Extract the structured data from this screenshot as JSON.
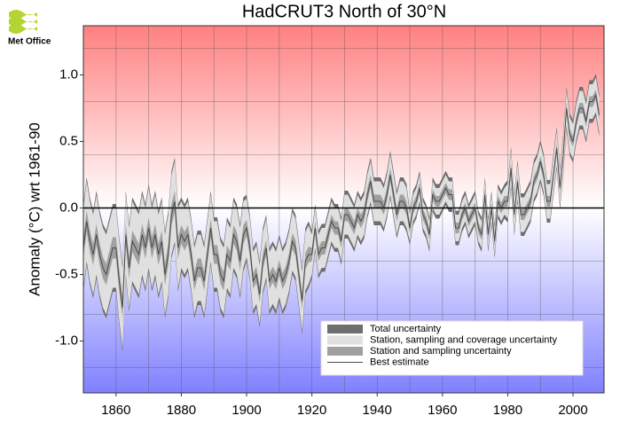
{
  "logo": "Met Office",
  "chart_data": {
    "type": "line",
    "title": "HadCRUT3 North of 30°N",
    "ylabel": "Anomaly (°C) wrt 1961-90",
    "xlim": [
      1850,
      2009.5
    ],
    "ylim": [
      -1.39,
      1.37
    ],
    "xticks": [
      1860,
      1880,
      1900,
      1920,
      1940,
      1960,
      1980,
      2000
    ],
    "xgrid": [
      1860,
      1870,
      1880,
      1890,
      1900,
      1910,
      1920,
      1930,
      1940,
      1950,
      1960,
      1970,
      1980,
      1990,
      2000
    ],
    "yticks": [
      {
        "value": 1.0,
        "label": "1.0"
      },
      {
        "value": 0.5,
        "label": "0.5"
      },
      {
        "value": 0.0,
        "label": "0.0"
      },
      {
        "value": -0.5,
        "label": "-0.5"
      },
      {
        "value": -1.0,
        "label": "-1.0"
      }
    ],
    "ygrid": [
      -1.2,
      -0.8,
      -0.4,
      0.4,
      0.8,
      1.2
    ],
    "grid": true,
    "zero_line": true,
    "background": {
      "top": "#ff8080",
      "middle": "#ffffff",
      "bottom": "#8080ff"
    },
    "legend": "lower right",
    "x": [
      1850,
      1851,
      1852,
      1853,
      1854,
      1855,
      1856,
      1857,
      1858,
      1859,
      1860,
      1861,
      1862,
      1863,
      1864,
      1865,
      1866,
      1867,
      1868,
      1869,
      1870,
      1871,
      1872,
      1873,
      1874,
      1875,
      1876,
      1877,
      1878,
      1879,
      1880,
      1881,
      1882,
      1883,
      1884,
      1885,
      1886,
      1887,
      1888,
      1889,
      1890,
      1891,
      1892,
      1893,
      1894,
      1895,
      1896,
      1897,
      1898,
      1899,
      1900,
      1901,
      1902,
      1903,
      1904,
      1905,
      1906,
      1907,
      1908,
      1909,
      1910,
      1911,
      1912,
      1913,
      1914,
      1915,
      1916,
      1917,
      1918,
      1919,
      1920,
      1921,
      1922,
      1923,
      1924,
      1925,
      1926,
      1927,
      1928,
      1929,
      1930,
      1931,
      1932,
      1933,
      1934,
      1935,
      1936,
      1937,
      1938,
      1939,
      1940,
      1941,
      1942,
      1943,
      1944,
      1945,
      1946,
      1947,
      1948,
      1949,
      1950,
      1951,
      1952,
      1953,
      1954,
      1955,
      1956,
      1957,
      1958,
      1959,
      1960,
      1961,
      1962,
      1963,
      1964,
      1965,
      1966,
      1967,
      1968,
      1969,
      1970,
      1971,
      1972,
      1973,
      1974,
      1975,
      1976,
      1977,
      1978,
      1979,
      1980,
      1981,
      1982,
      1983,
      1984,
      1985,
      1986,
      1987,
      1988,
      1989,
      1990,
      1991,
      1992,
      1993,
      1994,
      1995,
      1996,
      1997,
      1998,
      1999,
      2000,
      2001,
      2002,
      2003,
      2004,
      2005,
      2006,
      2007,
      2008
    ],
    "bands": [
      {
        "name": "Total uncertainty",
        "color": "#6e6e6e",
        "halfwidth": [
          0.33,
          0.33,
          0.33,
          0.33,
          0.33,
          0.33,
          0.33,
          0.33,
          0.33,
          0.33,
          0.33,
          0.33,
          0.33,
          0.33,
          0.33,
          0.33,
          0.33,
          0.33,
          0.33,
          0.33,
          0.33,
          0.33,
          0.33,
          0.33,
          0.33,
          0.33,
          0.33,
          0.33,
          0.33,
          0.33,
          0.28,
          0.28,
          0.28,
          0.28,
          0.28,
          0.28,
          0.28,
          0.28,
          0.28,
          0.28,
          0.28,
          0.28,
          0.28,
          0.28,
          0.28,
          0.28,
          0.28,
          0.28,
          0.28,
          0.28,
          0.25,
          0.25,
          0.25,
          0.25,
          0.25,
          0.25,
          0.25,
          0.25,
          0.25,
          0.25,
          0.25,
          0.25,
          0.25,
          0.25,
          0.25,
          0.25,
          0.25,
          0.25,
          0.25,
          0.25,
          0.18,
          0.18,
          0.18,
          0.18,
          0.18,
          0.18,
          0.18,
          0.18,
          0.18,
          0.18,
          0.18,
          0.18,
          0.18,
          0.18,
          0.18,
          0.18,
          0.18,
          0.18,
          0.18,
          0.18,
          0.18,
          0.18,
          0.18,
          0.18,
          0.18,
          0.18,
          0.18,
          0.18,
          0.18,
          0.18,
          0.13,
          0.13,
          0.13,
          0.13,
          0.13,
          0.13,
          0.13,
          0.13,
          0.13,
          0.13,
          0.13,
          0.13,
          0.13,
          0.13,
          0.13,
          0.13,
          0.13,
          0.13,
          0.13,
          0.13,
          0.13,
          0.13,
          0.13,
          0.13,
          0.13,
          0.13,
          0.13,
          0.13,
          0.13,
          0.13,
          0.16,
          0.16,
          0.16,
          0.16,
          0.16,
          0.16,
          0.16,
          0.16,
          0.16,
          0.16,
          0.16,
          0.16,
          0.16,
          0.16,
          0.16,
          0.16,
          0.16,
          0.16,
          0.16,
          0.16,
          0.16,
          0.16,
          0.16,
          0.16,
          0.16,
          0.16,
          0.16,
          0.16,
          0.16
        ]
      },
      {
        "name": "Station, sampling and coverage uncertainty",
        "color": "#e0e0e0",
        "halfwidth": [
          0.3,
          0.3,
          0.3,
          0.3,
          0.3,
          0.3,
          0.3,
          0.3,
          0.3,
          0.3,
          0.3,
          0.3,
          0.3,
          0.3,
          0.3,
          0.3,
          0.3,
          0.3,
          0.3,
          0.3,
          0.3,
          0.3,
          0.3,
          0.3,
          0.3,
          0.3,
          0.3,
          0.3,
          0.3,
          0.3,
          0.25,
          0.25,
          0.25,
          0.25,
          0.25,
          0.25,
          0.25,
          0.25,
          0.25,
          0.25,
          0.25,
          0.25,
          0.25,
          0.25,
          0.25,
          0.25,
          0.25,
          0.25,
          0.25,
          0.25,
          0.22,
          0.22,
          0.22,
          0.22,
          0.22,
          0.22,
          0.22,
          0.22,
          0.22,
          0.22,
          0.22,
          0.22,
          0.22,
          0.22,
          0.22,
          0.22,
          0.22,
          0.22,
          0.22,
          0.22,
          0.15,
          0.15,
          0.15,
          0.15,
          0.15,
          0.15,
          0.15,
          0.15,
          0.15,
          0.15,
          0.15,
          0.15,
          0.15,
          0.15,
          0.15,
          0.15,
          0.15,
          0.15,
          0.15,
          0.15,
          0.15,
          0.15,
          0.15,
          0.15,
          0.15,
          0.15,
          0.15,
          0.15,
          0.15,
          0.15,
          0.1,
          0.1,
          0.1,
          0.1,
          0.1,
          0.1,
          0.1,
          0.1,
          0.1,
          0.1,
          0.1,
          0.1,
          0.1,
          0.1,
          0.1,
          0.1,
          0.1,
          0.1,
          0.1,
          0.1,
          0.1,
          0.1,
          0.1,
          0.1,
          0.1,
          0.1,
          0.1,
          0.1,
          0.1,
          0.1,
          0.13,
          0.13,
          0.13,
          0.13,
          0.13,
          0.13,
          0.13,
          0.13,
          0.13,
          0.13,
          0.13,
          0.13,
          0.13,
          0.13,
          0.13,
          0.13,
          0.13,
          0.13,
          0.13,
          0.13,
          0.13,
          0.13,
          0.13,
          0.13,
          0.13,
          0.13,
          0.13,
          0.13,
          0.13
        ]
      },
      {
        "name": "Station and sampling uncertainty",
        "color": "#a0a0a0",
        "halfwidth": [
          0.08,
          0.08,
          0.08,
          0.08,
          0.08,
          0.08,
          0.08,
          0.08,
          0.08,
          0.08,
          0.08,
          0.08,
          0.08,
          0.08,
          0.08,
          0.08,
          0.08,
          0.08,
          0.08,
          0.08,
          0.08,
          0.08,
          0.08,
          0.08,
          0.08,
          0.08,
          0.08,
          0.08,
          0.08,
          0.08,
          0.07,
          0.07,
          0.07,
          0.07,
          0.07,
          0.07,
          0.07,
          0.07,
          0.07,
          0.07,
          0.07,
          0.07,
          0.07,
          0.07,
          0.07,
          0.07,
          0.07,
          0.07,
          0.07,
          0.07,
          0.06,
          0.06,
          0.06,
          0.06,
          0.06,
          0.06,
          0.06,
          0.06,
          0.06,
          0.06,
          0.06,
          0.06,
          0.06,
          0.06,
          0.06,
          0.06,
          0.06,
          0.06,
          0.06,
          0.06,
          0.05,
          0.05,
          0.05,
          0.05,
          0.05,
          0.05,
          0.05,
          0.05,
          0.05,
          0.05,
          0.05,
          0.05,
          0.05,
          0.05,
          0.05,
          0.05,
          0.05,
          0.05,
          0.05,
          0.05,
          0.05,
          0.05,
          0.05,
          0.05,
          0.05,
          0.05,
          0.05,
          0.05,
          0.05,
          0.05,
          0.04,
          0.04,
          0.04,
          0.04,
          0.04,
          0.04,
          0.04,
          0.04,
          0.04,
          0.04,
          0.04,
          0.04,
          0.04,
          0.04,
          0.04,
          0.04,
          0.04,
          0.04,
          0.04,
          0.04,
          0.04,
          0.04,
          0.04,
          0.04,
          0.04,
          0.04,
          0.04,
          0.04,
          0.04,
          0.04,
          0.04,
          0.04,
          0.04,
          0.04,
          0.04,
          0.04,
          0.04,
          0.04,
          0.04,
          0.04,
          0.04,
          0.04,
          0.04,
          0.04,
          0.04,
          0.04,
          0.04,
          0.04,
          0.04,
          0.04,
          0.04,
          0.04,
          0.04,
          0.04,
          0.04,
          0.04,
          0.04,
          0.04,
          0.04
        ]
      }
    ],
    "series": [
      {
        "name": "Best estimate",
        "color": "#4a4a4a",
        "values": [
          -0.3,
          -0.1,
          -0.25,
          -0.35,
          -0.2,
          -0.35,
          -0.45,
          -0.5,
          -0.4,
          -0.3,
          -0.3,
          -0.55,
          -0.75,
          -0.2,
          -0.45,
          -0.25,
          -0.3,
          -0.35,
          -0.2,
          -0.3,
          -0.15,
          -0.3,
          -0.2,
          -0.35,
          -0.25,
          -0.5,
          -0.35,
          -0.05,
          0.05,
          -0.3,
          -0.2,
          -0.25,
          -0.2,
          -0.35,
          -0.55,
          -0.45,
          -0.45,
          -0.55,
          -0.35,
          -0.15,
          -0.35,
          -0.35,
          -0.5,
          -0.55,
          -0.35,
          -0.4,
          -0.2,
          -0.25,
          -0.4,
          -0.2,
          -0.15,
          -0.3,
          -0.55,
          -0.5,
          -0.65,
          -0.4,
          -0.3,
          -0.55,
          -0.5,
          -0.55,
          -0.45,
          -0.55,
          -0.5,
          -0.4,
          -0.25,
          -0.3,
          -0.5,
          -0.7,
          -0.4,
          -0.35,
          -0.35,
          -0.15,
          -0.35,
          -0.3,
          -0.3,
          -0.2,
          -0.1,
          -0.15,
          -0.15,
          -0.25,
          -0.05,
          -0.05,
          -0.1,
          -0.15,
          -0.05,
          -0.1,
          -0.05,
          0.1,
          0.2,
          0.05,
          0.05,
          0.05,
          0.0,
          0.1,
          0.25,
          0.1,
          -0.05,
          0.05,
          0.05,
          0.0,
          -0.15,
          0.0,
          0.05,
          0.15,
          -0.05,
          -0.1,
          -0.2,
          0.1,
          0.05,
          0.05,
          0.1,
          0.15,
          0.1,
          0.1,
          -0.15,
          -0.15,
          -0.05,
          0.0,
          -0.1,
          -0.05,
          0.0,
          -0.15,
          -0.2,
          0.1,
          -0.2,
          0.0,
          -0.25,
          0.05,
          0.0,
          0.05,
          0.05,
          0.3,
          -0.05,
          0.2,
          -0.05,
          -0.05,
          0.0,
          0.05,
          0.2,
          0.25,
          0.35,
          0.25,
          0.05,
          0.05,
          0.25,
          0.45,
          0.15,
          0.4,
          0.75,
          0.55,
          0.5,
          0.65,
          0.75,
          0.75,
          0.65,
          0.8,
          0.8,
          0.85,
          0.7
        ]
      }
    ]
  }
}
